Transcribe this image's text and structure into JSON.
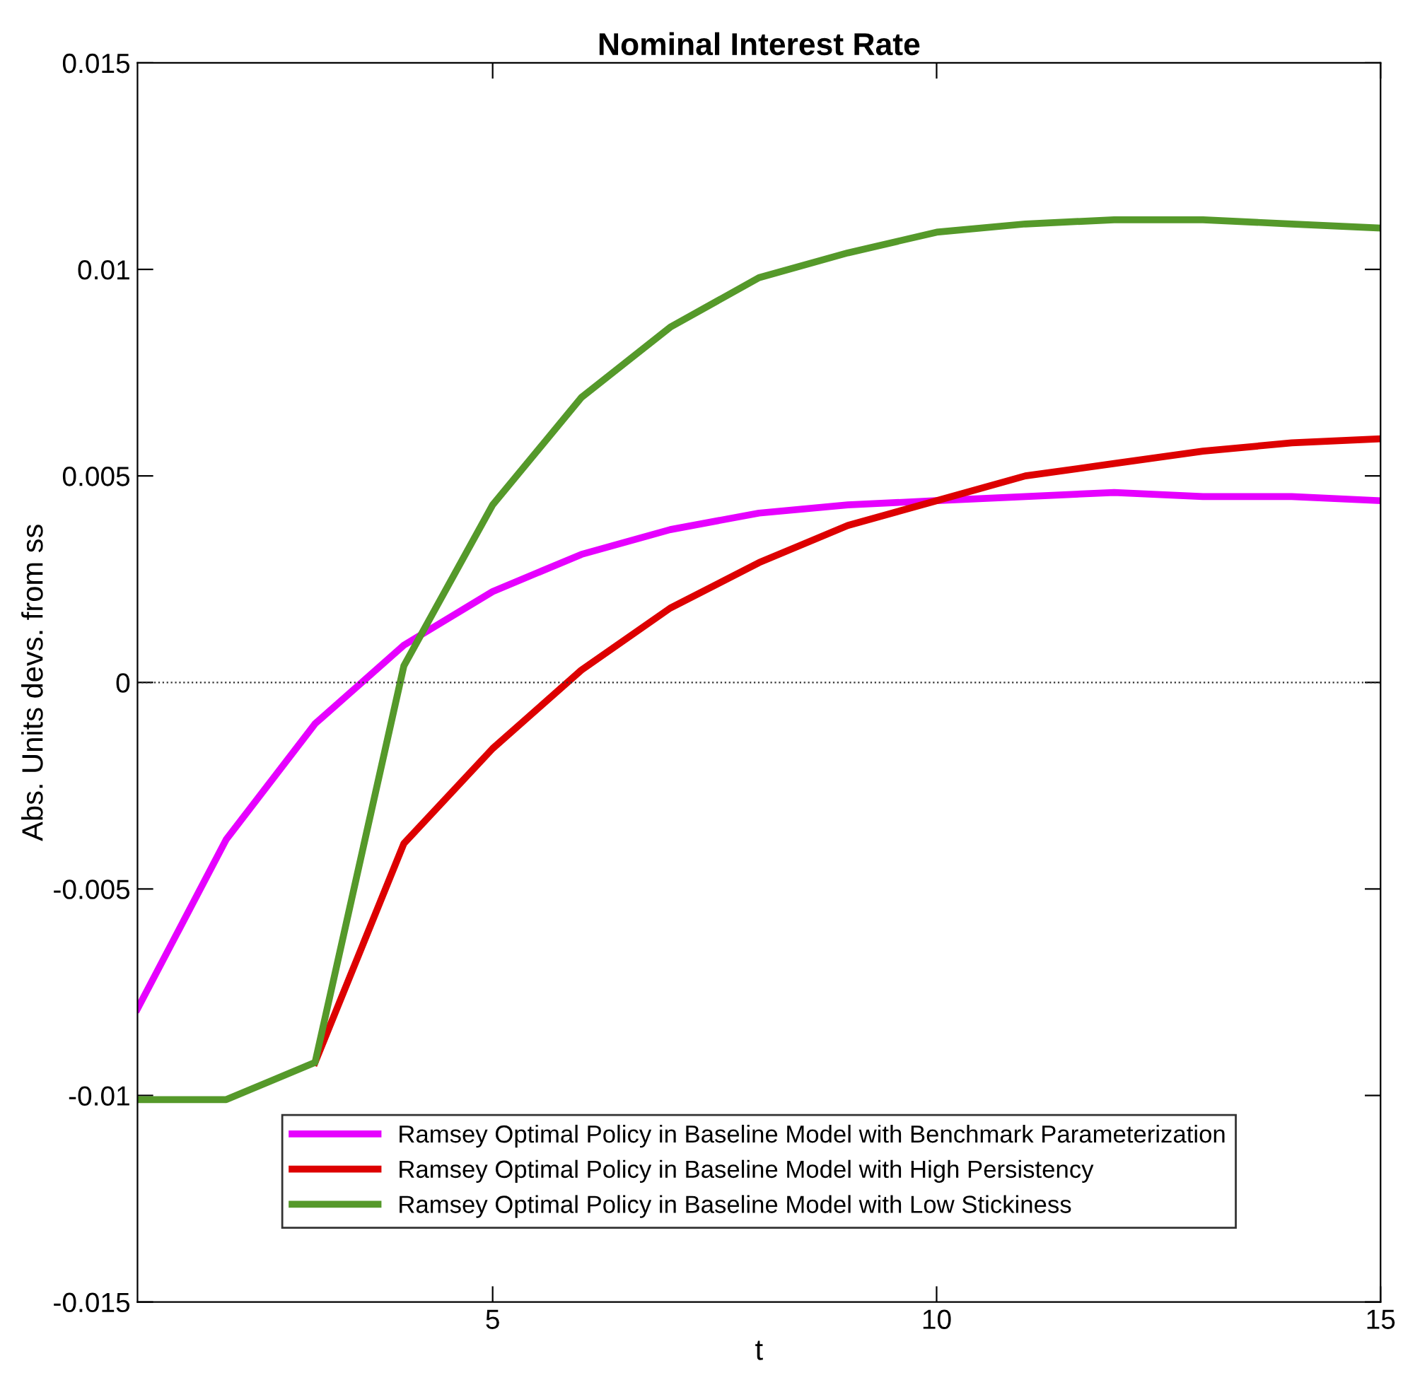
{
  "chart_data": {
    "type": "line",
    "title": "Nominal Interest Rate",
    "xlabel": "t",
    "ylabel": "Abs. Units devs. from ss",
    "x": [
      1,
      2,
      3,
      4,
      5,
      6,
      7,
      8,
      9,
      10,
      11,
      12,
      13,
      14,
      15
    ],
    "series": [
      {
        "name": "Ramsey Optimal Policy in Baseline Model with Benchmark Parameterization",
        "color": "#e600ff",
        "values": [
          -0.0079,
          -0.0038,
          -0.001,
          0.0009,
          0.0022,
          0.0031,
          0.0037,
          0.0041,
          0.0043,
          0.0044,
          0.0045,
          0.0046,
          0.0045,
          0.0045,
          0.0044
        ]
      },
      {
        "name": "Ramsey Optimal Policy in Baseline Model with High Persistency",
        "color": "#dd0000",
        "values": [
          null,
          null,
          -0.0092,
          -0.0039,
          -0.0016,
          0.0003,
          0.0018,
          0.0029,
          0.0038,
          0.0044,
          0.005,
          0.0053,
          0.0056,
          0.0058,
          0.0059
        ]
      },
      {
        "name": "Ramsey Optimal Policy in Baseline Model with Low Stickiness",
        "color": "#55992a",
        "values": [
          -0.0101,
          -0.0101,
          -0.0092,
          0.0004,
          0.0043,
          0.0069,
          0.0086,
          0.0098,
          0.0104,
          0.0109,
          0.0111,
          0.0112,
          0.0112,
          0.0111,
          0.011
        ]
      }
    ],
    "xlim": [
      1,
      15
    ],
    "xticks": [
      5,
      10,
      15
    ],
    "ylim": [
      -0.015,
      0.015
    ],
    "yticks": [
      -0.015,
      -0.01,
      -0.005,
      0,
      0.005,
      0.01,
      0.015
    ],
    "ref_lines": [
      {
        "axis": "y",
        "value": 0,
        "color": "#333333",
        "line_style": "dotted"
      }
    ],
    "legend": "bottom",
    "grid": false,
    "marker": "none",
    "line_style": "solid"
  }
}
